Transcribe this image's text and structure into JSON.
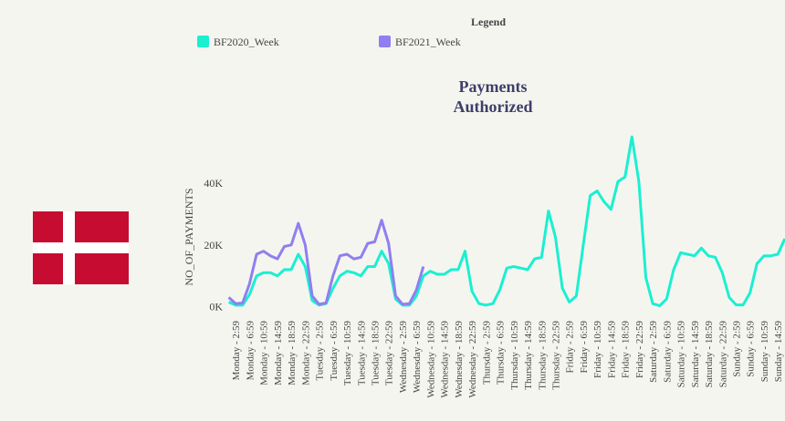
{
  "chart_data": {
    "type": "line",
    "title": "Payments Authorized",
    "legend_title": "Legend",
    "y_label": "NO_OF_PAYMENTS",
    "categories": [
      null,
      "Monday - 2:59",
      null,
      "Monday - 6:59",
      null,
      "Monday - 10:59",
      null,
      "Monday - 14:59",
      null,
      "Monday - 18:59",
      null,
      "Monday - 22:59",
      null,
      "Tuesday - 2:59",
      null,
      "Tuesday - 6:59",
      null,
      "Tuesday - 10:59",
      null,
      "Tuesday - 14:59",
      null,
      "Tuesday - 18:59",
      null,
      "Tuesday - 22:59",
      null,
      "Wednesday - 2:59",
      null,
      "Wednesday - 6:59",
      null,
      "Wednesday - 10:59",
      null,
      "Wednesday - 14:59",
      null,
      "Wednesday - 18:59",
      null,
      "Wednesday - 22:59",
      null,
      "Thursday - 2:59",
      null,
      "Thursday - 6:59",
      null,
      "Thursday - 10:59",
      null,
      "Thursday - 14:59",
      null,
      "Thursday - 18:59",
      null,
      "Thursday - 22:59",
      null,
      "Friday - 2:59",
      null,
      "Friday - 6:59",
      null,
      "Friday - 10:59",
      null,
      "Friday - 14:59",
      null,
      "Friday - 18:59",
      null,
      "Friday - 22:59",
      null,
      "Saturday - 2:59",
      null,
      "Saturday - 6:59",
      null,
      "Saturday - 10:59",
      null,
      "Saturday - 14:59",
      null,
      "Saturday - 18:59",
      null,
      "Saturday - 22:59",
      null,
      "Sunday - 2:59",
      null,
      "Sunday - 6:59",
      null,
      "Sunday - 10:59",
      null,
      "Sunday - 14:59",
      null
    ],
    "series": [
      {
        "name": "BF2020_Week",
        "color": "#1af0d0",
        "values": [
          1500,
          500,
          500,
          4000,
          10000,
          11000,
          11000,
          10000,
          12000,
          12000,
          17000,
          13000,
          2000,
          500,
          1000,
          6000,
          10000,
          11500,
          11000,
          10000,
          13000,
          13000,
          18000,
          14000,
          2500,
          500,
          500,
          3500,
          10000,
          11500,
          10500,
          10500,
          12000,
          12000,
          18000,
          5000,
          1000,
          500,
          1000,
          5500,
          12500,
          13000,
          12500,
          12000,
          15500,
          16000,
          31000,
          22500,
          6000,
          1500,
          3500,
          20000,
          36000,
          37500,
          34000,
          31500,
          40500,
          42000,
          55000,
          40500,
          9500,
          1000,
          300,
          2500,
          12000,
          17500,
          17000,
          16500,
          19000,
          16500,
          16000,
          11000,
          3000,
          600,
          600,
          4500,
          14000,
          16500,
          16500,
          17000,
          22000
        ]
      },
      {
        "name": "BF2021_Week",
        "color": "#8f7ff0",
        "values": [
          3000,
          1000,
          1200,
          7500,
          17000,
          18000,
          16500,
          15500,
          19500,
          20000,
          27000,
          20000,
          3500,
          800,
          1200,
          10000,
          16500,
          17000,
          15500,
          16000,
          20500,
          21000,
          28000,
          20500,
          3500,
          800,
          1000,
          5500,
          13000,
          null,
          null,
          null,
          null,
          null,
          null,
          null,
          null,
          null,
          null,
          null,
          null,
          null,
          null,
          null,
          null,
          null,
          null,
          null,
          null,
          null,
          null,
          null,
          null,
          null,
          null,
          null,
          null,
          null,
          null,
          null,
          null,
          null,
          null,
          null,
          null,
          null,
          null,
          null,
          null,
          null,
          null,
          null,
          null,
          null,
          null,
          null,
          null,
          null,
          null,
          null,
          null
        ]
      }
    ],
    "ylim": [
      -1000,
      58000
    ],
    "yticks": [
      {
        "value": 0,
        "label": "0K"
      },
      {
        "value": 20000,
        "label": "20K"
      },
      {
        "value": 40000,
        "label": "40K"
      }
    ]
  }
}
